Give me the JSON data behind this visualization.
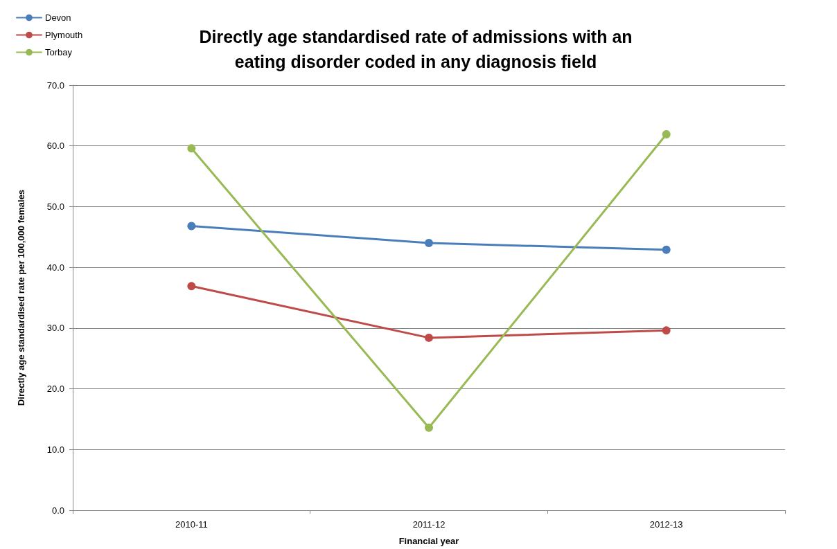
{
  "chart_data": {
    "type": "line",
    "title": "Directly age standardised rate of admissions with an\neating disorder coded in any diagnosis field",
    "xlabel": "Financial year",
    "ylabel": "Directly age standardised rate per 100,000 females",
    "categories": [
      "2010-11",
      "2011-12",
      "2012-13"
    ],
    "series": [
      {
        "name": "Devon",
        "color": "#4a7ebb",
        "values": [
          46.8,
          44.0,
          42.9
        ]
      },
      {
        "name": "Plymouth",
        "color": "#be4b48",
        "values": [
          36.9,
          28.4,
          29.6
        ]
      },
      {
        "name": "Torbay",
        "color": "#98b954",
        "values": [
          59.6,
          13.6,
          61.9
        ]
      }
    ],
    "ylim": [
      0,
      70
    ],
    "yticks": [
      {
        "value": 0,
        "label": "0.0"
      },
      {
        "value": 10,
        "label": "10.0"
      },
      {
        "value": 20,
        "label": "20.0"
      },
      {
        "value": 30,
        "label": "30.0"
      },
      {
        "value": 40,
        "label": "40.0"
      },
      {
        "value": 50,
        "label": "50.0"
      },
      {
        "value": 60,
        "label": "60.0"
      },
      {
        "value": 70,
        "label": "70.0"
      }
    ],
    "grid": "y",
    "legend": "top left",
    "marker": "circle",
    "line_style": "solid"
  }
}
